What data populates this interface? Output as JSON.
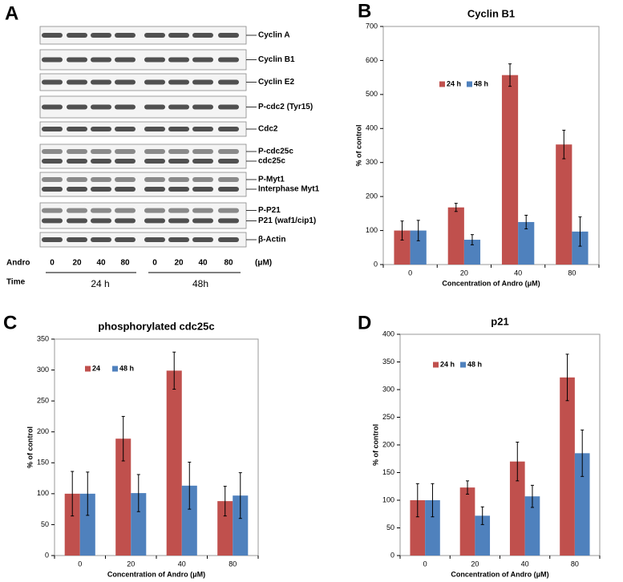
{
  "blot": {
    "panel_label": "A",
    "rows": [
      {
        "labels": [
          "Cyclin A"
        ]
      },
      {
        "labels": [
          "Cyclin B1"
        ]
      },
      {
        "labels": [
          "Cyclin E2"
        ]
      },
      {
        "labels": [
          "P-cdc2 (Tyr15)"
        ]
      },
      {
        "labels": [
          "Cdc2"
        ]
      },
      {
        "labels": [
          "P-cdc25c",
          "cdc25c"
        ]
      },
      {
        "labels": [
          "P-Myt1",
          "Interphase Myt1"
        ]
      },
      {
        "labels": [
          "P-P21",
          "P21 (waf1/cip1)"
        ]
      },
      {
        "labels": [
          "β-Actin"
        ]
      }
    ],
    "dose_label": "Andro",
    "doses": [
      "0",
      "20",
      "40",
      "80",
      "0",
      "20",
      "40",
      "80"
    ],
    "dose_unit": "(μM)",
    "time_label": "Time",
    "times": [
      "24 h",
      "48h"
    ]
  },
  "chart_data": [
    {
      "type": "bar",
      "panel_label": "B",
      "title": "Cyclin B1",
      "x_label": "Concentration of Andro (μM)",
      "y_label": "% of control",
      "categories": [
        "0",
        "20",
        "40",
        "80"
      ],
      "series": [
        {
          "name": "24 h",
          "color": "#c0504d",
          "values": [
            100,
            168,
            557,
            353
          ],
          "errors": [
            28,
            12,
            33,
            42
          ]
        },
        {
          "name": "48 h",
          "color": "#4f81bd",
          "values": [
            100,
            73,
            125,
            97
          ],
          "errors": [
            30,
            15,
            20,
            43
          ]
        }
      ],
      "ylim": [
        0,
        700
      ],
      "yticks": [
        0,
        100,
        200,
        300,
        400,
        500,
        600,
        700
      ]
    },
    {
      "type": "bar",
      "panel_label": "C",
      "title": "phosphorylated cdc25c",
      "x_label": "Concentration of Andro (μM)",
      "y_label": "% of control",
      "categories": [
        "0",
        "20",
        "40",
        "80"
      ],
      "series": [
        {
          "name": "24",
          "color": "#c0504d",
          "values": [
            100,
            189,
            299,
            88
          ],
          "errors": [
            36,
            36,
            30,
            24
          ]
        },
        {
          "name": "48 h",
          "color": "#4f81bd",
          "values": [
            100,
            101,
            113,
            97
          ],
          "errors": [
            35,
            30,
            38,
            37
          ]
        }
      ],
      "ylim": [
        0,
        350
      ],
      "yticks": [
        0,
        50,
        100,
        150,
        200,
        250,
        300,
        350
      ]
    },
    {
      "type": "bar",
      "panel_label": "D",
      "title": "p21",
      "x_label": "Concentration of Andro (μM)",
      "y_label": "% of control",
      "categories": [
        "0",
        "20",
        "40",
        "80"
      ],
      "series": [
        {
          "name": "24 h",
          "color": "#c0504d",
          "values": [
            100,
            123,
            170,
            322
          ],
          "errors": [
            30,
            12,
            35,
            42
          ]
        },
        {
          "name": "48 h",
          "color": "#4f81bd",
          "values": [
            100,
            72,
            107,
            185
          ],
          "errors": [
            30,
            16,
            20,
            42
          ]
        }
      ],
      "ylim": [
        0,
        400
      ],
      "yticks": [
        0,
        50,
        100,
        150,
        200,
        250,
        300,
        350,
        400
      ]
    }
  ]
}
